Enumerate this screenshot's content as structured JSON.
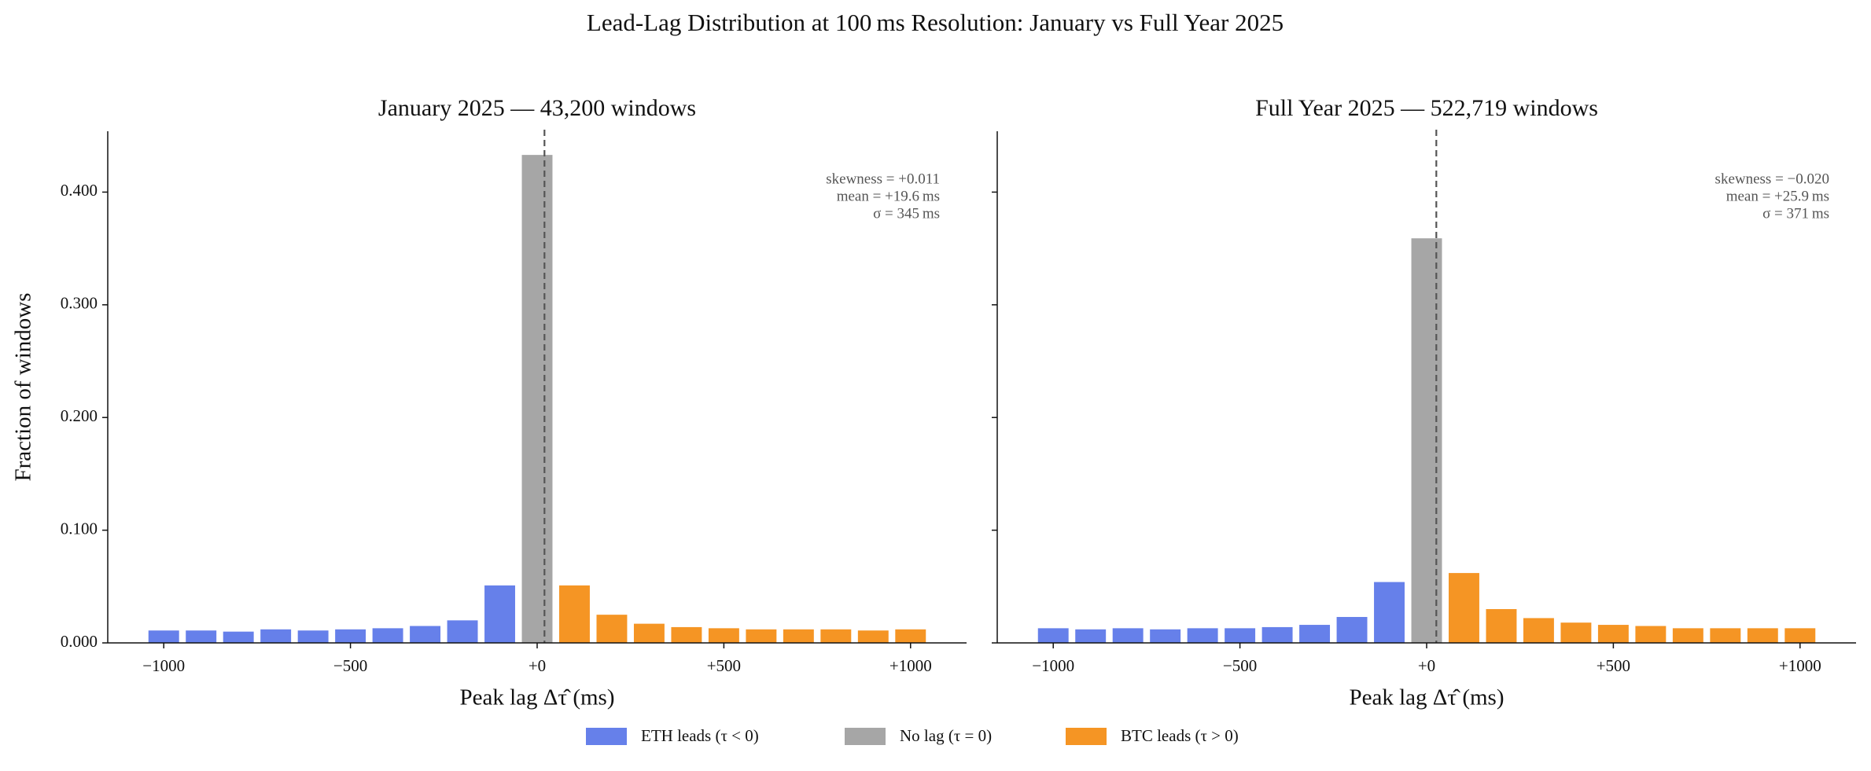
{
  "title": "Lead-Lag Distribution at 100 ms Resolution: January vs Full Year 2025",
  "chart_data": [
    {
      "type": "bar",
      "title": "January 2025 — 43,200 windows",
      "xlabel": "Peak lag Δτ̂ (ms)",
      "ylabel": "Fraction of windows",
      "annotations": [
        "skewness = +0.011",
        "mean = +19.6 ms",
        "σ = 345 ms"
      ],
      "vline": 19.6,
      "xlim": [
        -1150,
        1150
      ],
      "ylim": [
        0,
        0.454
      ],
      "xticks": [
        {
          "value": -1000,
          "label": "−1000"
        },
        {
          "value": -500,
          "label": "−500"
        },
        {
          "value": 0,
          "label": "+0"
        },
        {
          "value": 500,
          "label": "+500"
        },
        {
          "value": 1000,
          "label": "+1000"
        }
      ],
      "yticks": [
        {
          "value": 0,
          "label": "0.000"
        },
        {
          "value": 0.1,
          "label": "0.100"
        },
        {
          "value": 0.2,
          "label": "0.200"
        },
        {
          "value": 0.3,
          "label": "0.300"
        },
        {
          "value": 0.4,
          "label": "0.400"
        }
      ],
      "series": [
        {
          "name": "ETH leads (τ < 0)",
          "color": "#6680ea",
          "x": [
            -1000,
            -900,
            -800,
            -700,
            -600,
            -500,
            -400,
            -300,
            -200,
            -100
          ],
          "values": [
            0.011,
            0.011,
            0.01,
            0.012,
            0.011,
            0.012,
            0.013,
            0.015,
            0.02,
            0.051
          ]
        },
        {
          "name": "No lag (τ = 0)",
          "color": "#a6a6a6",
          "x": [
            0
          ],
          "values": [
            0.433
          ]
        },
        {
          "name": "BTC leads (τ > 0)",
          "color": "#f59524",
          "x": [
            100,
            200,
            300,
            400,
            500,
            600,
            700,
            800,
            900,
            1000
          ],
          "values": [
            0.051,
            0.025,
            0.017,
            0.014,
            0.013,
            0.012,
            0.012,
            0.012,
            0.011,
            0.012
          ]
        }
      ]
    },
    {
      "type": "bar",
      "title": "Full Year 2025 — 522,719 windows",
      "xlabel": "Peak lag Δτ̂ (ms)",
      "annotations": [
        "skewness = −0.020",
        "mean = +25.9 ms",
        "σ = 371 ms"
      ],
      "vline": 25.9,
      "sharey": true,
      "xlim": [
        -1150,
        1150
      ],
      "ylim": [
        0,
        0.454
      ],
      "xticks": [
        {
          "value": -1000,
          "label": "−1000"
        },
        {
          "value": -500,
          "label": "−500"
        },
        {
          "value": 0,
          "label": "+0"
        },
        {
          "value": 500,
          "label": "+500"
        },
        {
          "value": 1000,
          "label": "+1000"
        }
      ],
      "series": [
        {
          "name": "ETH leads (τ < 0)",
          "color": "#6680ea",
          "x": [
            -1000,
            -900,
            -800,
            -700,
            -600,
            -500,
            -400,
            -300,
            -200,
            -100
          ],
          "values": [
            0.013,
            0.012,
            0.013,
            0.012,
            0.013,
            0.013,
            0.014,
            0.016,
            0.023,
            0.054
          ]
        },
        {
          "name": "No lag (τ = 0)",
          "color": "#a6a6a6",
          "x": [
            0
          ],
          "values": [
            0.359
          ]
        },
        {
          "name": "BTC leads (τ > 0)",
          "color": "#f59524",
          "x": [
            100,
            200,
            300,
            400,
            500,
            600,
            700,
            800,
            900,
            1000
          ],
          "values": [
            0.062,
            0.03,
            0.022,
            0.018,
            0.016,
            0.015,
            0.013,
            0.013,
            0.013,
            0.013
          ]
        }
      ]
    }
  ]
}
